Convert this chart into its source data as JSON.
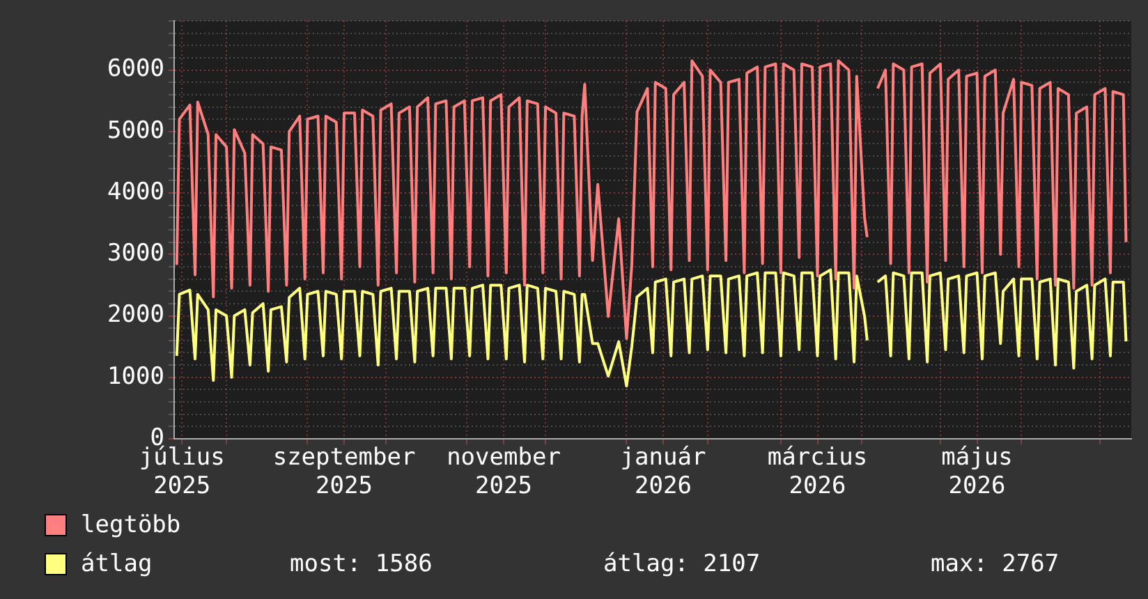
{
  "chart_data": {
    "type": "line",
    "x": [
      "2025-07-13",
      "2025-07-14",
      "2025-07-18",
      "2025-07-20",
      "2025-07-21",
      "2025-07-25",
      "2025-07-27",
      "2025-07-28",
      "2025-08-01",
      "2025-08-03",
      "2025-08-04",
      "2025-08-08",
      "2025-08-10",
      "2025-08-11",
      "2025-08-15",
      "2025-08-17",
      "2025-08-18",
      "2025-08-22",
      "2025-08-24",
      "2025-08-25",
      "2025-08-29",
      "2025-08-31",
      "2025-09-01",
      "2025-09-05",
      "2025-09-07",
      "2025-09-08",
      "2025-09-12",
      "2025-09-14",
      "2025-09-15",
      "2025-09-19",
      "2025-09-21",
      "2025-09-22",
      "2025-09-26",
      "2025-09-28",
      "2025-09-29",
      "2025-10-03",
      "2025-10-05",
      "2025-10-06",
      "2025-10-10",
      "2025-10-12",
      "2025-10-13",
      "2025-10-17",
      "2025-10-19",
      "2025-10-20",
      "2025-10-24",
      "2025-10-26",
      "2025-10-27",
      "2025-10-31",
      "2025-11-02",
      "2025-11-03",
      "2025-11-07",
      "2025-11-09",
      "2025-11-10",
      "2025-11-14",
      "2025-11-16",
      "2025-11-17",
      "2025-11-21",
      "2025-11-23",
      "2025-11-24",
      "2025-11-28",
      "2025-11-30",
      "2025-12-01",
      "2025-12-05",
      "2025-12-07",
      "2025-12-08",
      "2025-12-12",
      "2025-12-14",
      "2025-12-15",
      "2025-12-16",
      "2025-12-19",
      "2025-12-21",
      "2025-12-25",
      "2025-12-29",
      "2026-01-01",
      "2026-01-03",
      "2026-01-05",
      "2026-01-09",
      "2026-01-11",
      "2026-01-12",
      "2026-01-16",
      "2026-01-18",
      "2026-01-19",
      "2026-01-23",
      "2026-01-25",
      "2026-01-26",
      "2026-01-30",
      "2026-02-01",
      "2026-02-02",
      "2026-02-06",
      "2026-02-08",
      "2026-02-09",
      "2026-02-13",
      "2026-02-15",
      "2026-02-16",
      "2026-02-20",
      "2026-02-22",
      "2026-02-23",
      "2026-02-27",
      "2026-03-01",
      "2026-03-02",
      "2026-03-06",
      "2026-03-08",
      "2026-03-09",
      "2026-03-13",
      "2026-03-15",
      "2026-03-16",
      "2026-03-20",
      "2026-03-22",
      "2026-03-23",
      "2026-03-27",
      "2026-03-29",
      "2026-03-30",
      "2026-04-02",
      "2026-04-03",
      "2026-04-05",
      "2026-04-07",
      "2026-04-10",
      "2026-04-12",
      "2026-04-13",
      "2026-04-17",
      "2026-04-19",
      "2026-04-20",
      "2026-04-24",
      "2026-04-26",
      "2026-04-27",
      "2026-05-01",
      "2026-05-03",
      "2026-05-04",
      "2026-05-08",
      "2026-05-10",
      "2026-05-11",
      "2026-05-15",
      "2026-05-17",
      "2026-05-18",
      "2026-05-22",
      "2026-05-24",
      "2026-05-25",
      "2026-05-29",
      "2026-05-31",
      "2026-06-01",
      "2026-06-05",
      "2026-06-07",
      "2026-06-08",
      "2026-06-12",
      "2026-06-14",
      "2026-06-15",
      "2026-06-19",
      "2026-06-21",
      "2026-06-22",
      "2026-06-26",
      "2026-06-28",
      "2026-06-29",
      "2026-07-03",
      "2026-07-05",
      "2026-07-06",
      "2026-07-10",
      "2026-07-11"
    ],
    "series": [
      {
        "name": "legtöbb",
        "color": "#ff7f7f",
        "values": [
          2830,
          5200,
          5430,
          2670,
          5480,
          4950,
          2310,
          4950,
          4750,
          2450,
          5030,
          4650,
          2500,
          4950,
          4800,
          2400,
          4750,
          4700,
          2500,
          5000,
          5250,
          2600,
          5200,
          5250,
          2700,
          5250,
          5150,
          2600,
          5300,
          5300,
          2800,
          5350,
          5250,
          2500,
          5350,
          5450,
          2700,
          5300,
          5400,
          2550,
          5400,
          5550,
          2700,
          5450,
          5500,
          2600,
          5400,
          5500,
          2800,
          5500,
          5550,
          2650,
          5500,
          5600,
          2700,
          5400,
          5550,
          2500,
          5500,
          5450,
          2700,
          5400,
          5300,
          2600,
          5300,
          5250,
          2650,
          5250,
          5770,
          2900,
          4140,
          1990,
          3580,
          1630,
          2830,
          5320,
          5700,
          2800,
          5800,
          5700,
          2750,
          5600,
          5800,
          2900,
          6150,
          5900,
          2750,
          6000,
          5800,
          2900,
          5800,
          5850,
          2700,
          5950,
          6050,
          2850,
          6050,
          6100,
          2700,
          6100,
          6000,
          2950,
          6100,
          6050,
          2650,
          6050,
          6100,
          2600,
          6150,
          6000,
          2450,
          5900,
          3600,
          3280,
          null,
          5700,
          6000,
          2850,
          6100,
          6000,
          2700,
          6050,
          6100,
          2550,
          5950,
          6100,
          2900,
          5850,
          6000,
          2800,
          5900,
          5950,
          2700,
          5900,
          6000,
          3000,
          5300,
          5850,
          2800,
          5800,
          5750,
          2600,
          5700,
          5800,
          2500,
          5700,
          5600,
          2450,
          5300,
          5400,
          2500,
          5600,
          5700,
          2700,
          5650,
          5600,
          3200
        ]
      },
      {
        "name": "átlag",
        "color": "#ffff80",
        "values": [
          1350,
          2350,
          2420,
          1300,
          2350,
          2100,
          950,
          2100,
          2000,
          1000,
          2000,
          2100,
          1200,
          2050,
          2200,
          1100,
          2100,
          2150,
          1250,
          2300,
          2450,
          1300,
          2350,
          2400,
          1350,
          2400,
          2350,
          1300,
          2400,
          2400,
          1350,
          2400,
          2350,
          1200,
          2400,
          2450,
          1300,
          2400,
          2400,
          1250,
          2400,
          2450,
          1350,
          2450,
          2450,
          1300,
          2450,
          2450,
          1350,
          2450,
          2500,
          1300,
          2500,
          2500,
          1300,
          2450,
          2500,
          1250,
          2500,
          2450,
          1300,
          2450,
          2400,
          1300,
          2400,
          2350,
          1250,
          2350,
          2350,
          1550,
          1550,
          1020,
          1580,
          860,
          1500,
          2310,
          2450,
          1400,
          2550,
          2600,
          1350,
          2550,
          2600,
          1400,
          2600,
          2650,
          1450,
          2650,
          2650,
          1400,
          2600,
          2650,
          1350,
          2650,
          2700,
          1400,
          2700,
          2700,
          1350,
          2700,
          2650,
          1450,
          2700,
          2700,
          1350,
          2650,
          2750,
          1300,
          2700,
          2700,
          1250,
          2650,
          2000,
          1600,
          null,
          2550,
          2650,
          1350,
          2700,
          2650,
          1300,
          2700,
          2700,
          1250,
          2650,
          2700,
          1450,
          2600,
          2650,
          1400,
          2650,
          2700,
          1300,
          2650,
          2700,
          1550,
          2400,
          2600,
          1350,
          2600,
          2600,
          1300,
          2550,
          2600,
          1200,
          2600,
          2550,
          1150,
          2400,
          2500,
          1300,
          2500,
          2600,
          1350,
          2550,
          2550,
          1586
        ]
      }
    ],
    "xlim": [
      "2025-07-12",
      "2026-07-13"
    ],
    "xticks": [
      {
        "value": "2025-07-15",
        "label": "július 2025"
      },
      {
        "value": "2025-08-01",
        "label": null
      },
      {
        "value": "2025-09-01",
        "label": null
      },
      {
        "value": "2025-09-15",
        "label": "szeptember 2025"
      },
      {
        "value": "2025-10-01",
        "label": null
      },
      {
        "value": "2025-11-01",
        "label": null
      },
      {
        "value": "2025-11-15",
        "label": "november 2025"
      },
      {
        "value": "2025-12-01",
        "label": null
      },
      {
        "value": "2026-01-01",
        "label": null
      },
      {
        "value": "2026-01-15",
        "label": "január 2026"
      },
      {
        "value": "2026-02-01",
        "label": null
      },
      {
        "value": "2026-03-01",
        "label": null
      },
      {
        "value": "2026-03-15",
        "label": "március 2026"
      },
      {
        "value": "2026-04-01",
        "label": null
      },
      {
        "value": "2026-05-01",
        "label": null
      },
      {
        "value": "2026-05-15",
        "label": "május 2026"
      },
      {
        "value": "2026-06-01",
        "label": null
      },
      {
        "value": "2026-07-01",
        "label": null
      }
    ],
    "ylim": [
      0,
      6800
    ],
    "yticks": [
      0,
      {
        "value": 200,
        "label": null
      },
      {
        "value": 400,
        "label": null
      },
      {
        "value": 600,
        "label": null
      },
      {
        "value": 800,
        "label": null
      },
      1000,
      {
        "value": 1200,
        "label": null
      },
      {
        "value": 1400,
        "label": null
      },
      {
        "value": 1600,
        "label": null
      },
      {
        "value": 1800,
        "label": null
      },
      2000,
      {
        "value": 2200,
        "label": null
      },
      {
        "value": 2400,
        "label": null
      },
      {
        "value": 2600,
        "label": null
      },
      {
        "value": 2800,
        "label": null
      },
      3000,
      {
        "value": 3200,
        "label": null
      },
      {
        "value": 3400,
        "label": null
      },
      {
        "value": 3600,
        "label": null
      },
      {
        "value": 3800,
        "label": null
      },
      4000,
      {
        "value": 4200,
        "label": null
      },
      {
        "value": 4400,
        "label": null
      },
      {
        "value": 4600,
        "label": null
      },
      {
        "value": 4800,
        "label": null
      },
      5000,
      {
        "value": 5200,
        "label": null
      },
      {
        "value": 5400,
        "label": null
      },
      {
        "value": 5600,
        "label": null
      },
      {
        "value": 5800,
        "label": null
      },
      6000,
      {
        "value": 6200,
        "label": null
      },
      {
        "value": 6400,
        "label": null
      },
      {
        "value": 6600,
        "label": null
      },
      {
        "value": 6800,
        "label": null
      }
    ],
    "grid": true,
    "legend": "bottom",
    "annotations": [
      "most: 1586",
      "átlag: 2107",
      "max: 2767"
    ]
  }
}
